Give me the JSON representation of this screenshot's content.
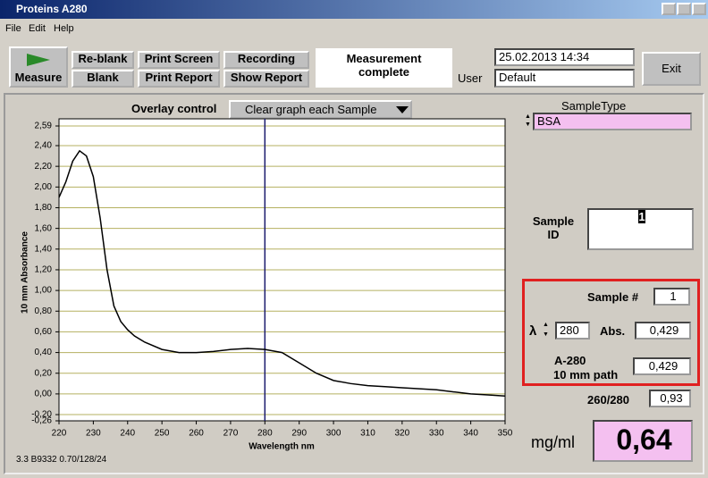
{
  "window": {
    "title": "Proteins A280"
  },
  "menu": [
    "File",
    "Edit",
    "Help"
  ],
  "toolbar": {
    "measure": "Measure",
    "reblank": "Re-blank",
    "blank": "Blank",
    "print_screen": "Print Screen",
    "print_report": "Print Report",
    "recording": "Recording",
    "show_report": "Show Report",
    "status": "Measurement complete",
    "user_label": "User",
    "datetime": "25.02.2013  14:34",
    "user": "Default",
    "exit": "Exit"
  },
  "overlay": {
    "label": "Overlay control",
    "value": "Clear graph each Sample"
  },
  "chart_data": {
    "type": "line",
    "xlabel": "Wavelength nm",
    "ylabel": "10 mm Absorbance",
    "x": [
      220,
      222,
      224,
      226,
      228,
      230,
      232,
      234,
      236,
      238,
      240,
      242,
      245,
      250,
      255,
      260,
      265,
      270,
      275,
      280,
      285,
      290,
      295,
      300,
      305,
      310,
      315,
      320,
      325,
      330,
      335,
      340,
      345,
      350
    ],
    "values": [
      1.9,
      2.05,
      2.25,
      2.35,
      2.3,
      2.1,
      1.7,
      1.2,
      0.85,
      0.7,
      0.62,
      0.56,
      0.5,
      0.43,
      0.4,
      0.4,
      0.41,
      0.43,
      0.44,
      0.43,
      0.4,
      0.3,
      0.2,
      0.13,
      0.1,
      0.08,
      0.07,
      0.06,
      0.05,
      0.04,
      0.02,
      0.0,
      -0.01,
      -0.02
    ],
    "color": "#000000",
    "cursor_x": 280,
    "cursor_color": "#1a1a6e",
    "xlim": [
      220,
      350
    ],
    "xticks": [
      220,
      230,
      240,
      250,
      260,
      270,
      280,
      290,
      300,
      310,
      320,
      330,
      340,
      350
    ],
    "ylim": [
      -0.26,
      2.59
    ],
    "yticks": [
      {
        "value": -0.26,
        "label": "-0,26"
      },
      {
        "value": -0.2,
        "label": "-0,20"
      },
      {
        "value": 0,
        "label": "0,00"
      },
      {
        "value": 0.2,
        "label": "0,20"
      },
      {
        "value": 0.4,
        "label": "0,40"
      },
      {
        "value": 0.6,
        "label": "0,60"
      },
      {
        "value": 0.8,
        "label": "0,80"
      },
      {
        "value": 1.0,
        "label": "1,00"
      },
      {
        "value": 1.2,
        "label": "1,20"
      },
      {
        "value": 1.4,
        "label": "1,40"
      },
      {
        "value": 1.6,
        "label": "1,60"
      },
      {
        "value": 1.8,
        "label": "1,80"
      },
      {
        "value": 2.0,
        "label": "2,00"
      },
      {
        "value": 2.2,
        "label": "2,20"
      },
      {
        "value": 2.4,
        "label": "2,40"
      },
      {
        "value": 2.59,
        "label": "2,59"
      }
    ],
    "grid": true,
    "grid_color": "#b5b060"
  },
  "version": "3.3 B9332 0.70/128/24",
  "sample": {
    "type_label": "SampleType",
    "type": "BSA",
    "id_label": "Sample ID",
    "id": "1",
    "number_label": "Sample #",
    "number": "1",
    "lambda_label": "λ",
    "lambda": "280",
    "abs_label": "Abs.",
    "abs": "0,429",
    "a280_label": "A-280",
    "path_label": "10 mm path",
    "a280": "0,429",
    "ratio_label": "260/280",
    "ratio": "0,93",
    "conc_label": "mg/ml",
    "conc": "0,64"
  }
}
